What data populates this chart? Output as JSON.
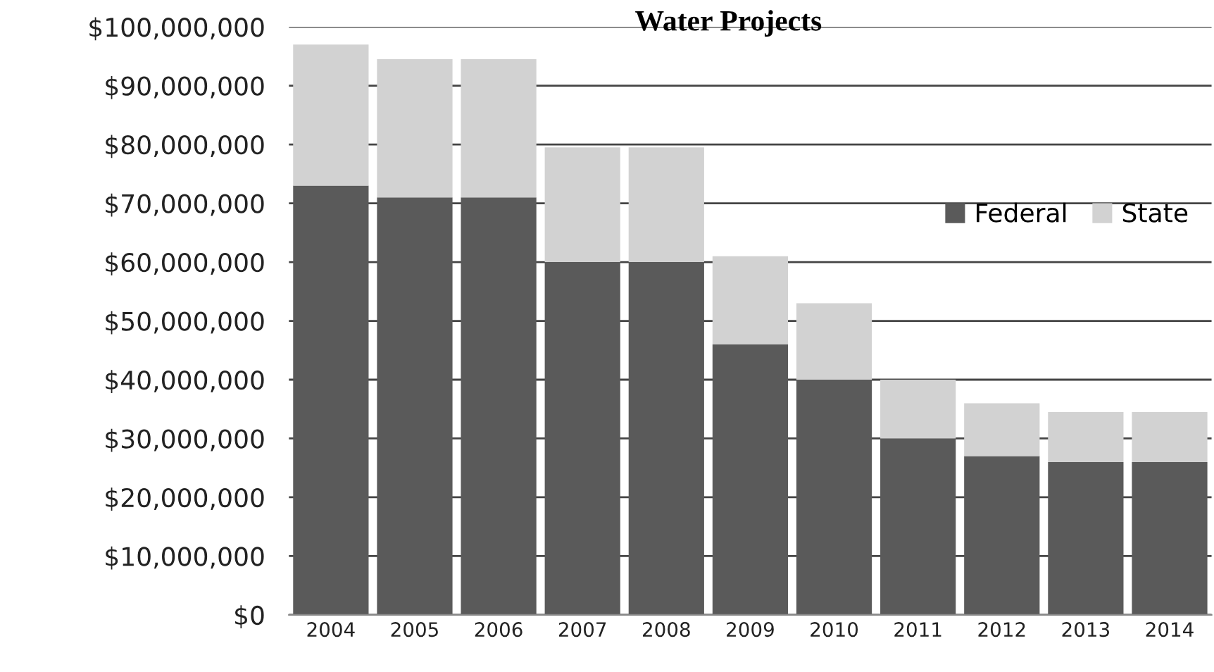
{
  "chart_data": {
    "type": "bar",
    "stacked": true,
    "title": "Water Projects",
    "categories": [
      "2004",
      "2005",
      "2006",
      "2007",
      "2008",
      "2009",
      "2010",
      "2011",
      "2012",
      "2013",
      "2014"
    ],
    "series": [
      {
        "name": "Federal",
        "color": "#5a5a5a",
        "values": [
          73000000,
          71000000,
          71000000,
          60000000,
          60000000,
          46000000,
          40000000,
          30000000,
          27000000,
          26000000,
          26000000
        ]
      },
      {
        "name": "State",
        "color": "#d2d2d2",
        "values": [
          24000000,
          23500000,
          23500000,
          19500000,
          19500000,
          15000000,
          13000000,
          10000000,
          9000000,
          8500000,
          8500000
        ]
      }
    ],
    "ylim": [
      0,
      100000000
    ],
    "yticks": [
      {
        "value": 0,
        "label": "$0"
      },
      {
        "value": 10000000,
        "label": "$10,000,000"
      },
      {
        "value": 20000000,
        "label": "$20,000,000"
      },
      {
        "value": 30000000,
        "label": "$30,000,000"
      },
      {
        "value": 40000000,
        "label": "$40,000,000"
      },
      {
        "value": 50000000,
        "label": "$50,000,000"
      },
      {
        "value": 60000000,
        "label": "$60,000,000"
      },
      {
        "value": 70000000,
        "label": "$70,000,000"
      },
      {
        "value": 80000000,
        "label": "$80,000,000"
      },
      {
        "value": 90000000,
        "label": "$90,000,000"
      },
      {
        "value": 100000000,
        "label": "$100,000,000"
      }
    ],
    "grid": "y",
    "legend": "right"
  }
}
